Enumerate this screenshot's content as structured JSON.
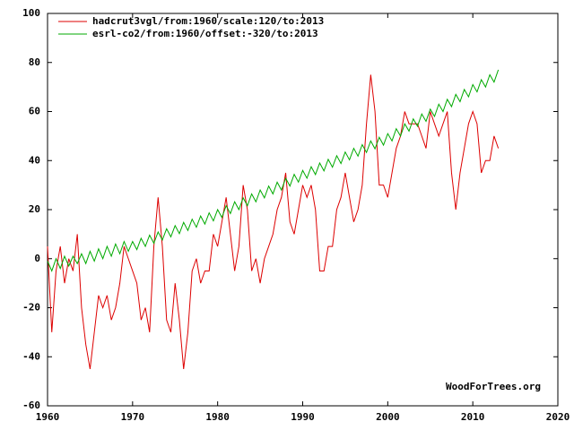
{
  "chart_data": {
    "type": "line",
    "annotation": "WoodForTrees.org",
    "legend": "top-left",
    "grid": false,
    "xlim": [
      1960,
      2020
    ],
    "xticks": [
      1960,
      1970,
      1980,
      1990,
      2000,
      2010,
      2020
    ],
    "ylim": [
      -60,
      100
    ],
    "yticks": [
      -60,
      -40,
      -20,
      0,
      20,
      40,
      60,
      80,
      100
    ],
    "x": [
      1960,
      1960.5,
      1961,
      1961.5,
      1962,
      1962.5,
      1963,
      1963.5,
      1964,
      1964.5,
      1965,
      1965.5,
      1966,
      1966.5,
      1967,
      1967.5,
      1968,
      1968.5,
      1969,
      1969.5,
      1970,
      1970.5,
      1971,
      1971.5,
      1972,
      1972.5,
      1973,
      1973.5,
      1974,
      1974.5,
      1975,
      1975.5,
      1976,
      1976.5,
      1977,
      1977.5,
      1978,
      1978.5,
      1979,
      1979.5,
      1980,
      1980.5,
      1981,
      1981.5,
      1982,
      1982.5,
      1983,
      1983.5,
      1984,
      1984.5,
      1985,
      1985.5,
      1986,
      1986.5,
      1987,
      1987.5,
      1988,
      1988.5,
      1989,
      1989.5,
      1990,
      1990.5,
      1991,
      1991.5,
      1992,
      1992.5,
      1993,
      1993.5,
      1994,
      1994.5,
      1995,
      1995.5,
      1996,
      1996.5,
      1997,
      1997.5,
      1998,
      1998.5,
      1999,
      1999.5,
      2000,
      2000.5,
      2001,
      2001.5,
      2002,
      2002.5,
      2003,
      2003.5,
      2004,
      2004.5,
      2005,
      2005.5,
      2006,
      2006.5,
      2007,
      2007.5,
      2008,
      2008.5,
      2009,
      2009.5,
      2010,
      2010.5,
      2011,
      2011.5,
      2012,
      2012.5,
      2013
    ],
    "series": [
      {
        "name": "hadcrut3vgl/from:1960/scale:120/to:2013",
        "color": "#dd0000",
        "values": [
          5,
          -30,
          -5,
          5,
          -10,
          0,
          -5,
          10,
          -20,
          -35,
          -45,
          -30,
          -15,
          -20,
          -15,
          -25,
          -20,
          -10,
          5,
          0,
          -5,
          -10,
          -25,
          -20,
          -30,
          5,
          25,
          5,
          -25,
          -30,
          -10,
          -25,
          -45,
          -30,
          -5,
          0,
          -10,
          -5,
          -5,
          10,
          5,
          15,
          25,
          10,
          -5,
          5,
          30,
          20,
          -5,
          0,
          -10,
          0,
          5,
          10,
          20,
          25,
          35,
          15,
          10,
          20,
          30,
          25,
          30,
          20,
          -5,
          -5,
          5,
          5,
          20,
          25,
          35,
          25,
          15,
          20,
          30,
          55,
          75,
          60,
          30,
          30,
          25,
          35,
          45,
          50,
          60,
          55,
          55,
          55,
          50,
          45,
          60,
          55,
          50,
          55,
          60,
          35,
          20,
          35,
          45,
          55,
          60,
          55,
          35,
          40,
          40,
          50,
          45
        ]
      },
      {
        "name": "esrl-co2/from:1960/offset:-320/to:2013",
        "color": "#00aa00",
        "values": [
          -1,
          -5,
          0,
          -4,
          1,
          -3,
          1,
          -2,
          2,
          -2,
          3,
          -1,
          4,
          0,
          5,
          1,
          6,
          2,
          7,
          3,
          7,
          3.7,
          8.3,
          5,
          9.6,
          6.3,
          10.9,
          7.6,
          12.2,
          8.9,
          13.5,
          10.2,
          14.8,
          11.5,
          16.1,
          12.8,
          17.4,
          14.1,
          18.7,
          15.4,
          20,
          16.8,
          21.6,
          18.4,
          23.2,
          20,
          24.8,
          21.6,
          26.4,
          23.2,
          28,
          24.8,
          29.6,
          26.4,
          31.2,
          28,
          32.8,
          29.6,
          34.4,
          31.2,
          36,
          32.8,
          37.5,
          34.3,
          39,
          35.8,
          40.5,
          37.3,
          42,
          38.8,
          43.5,
          40.3,
          45,
          41.8,
          46.5,
          43.3,
          48,
          44.8,
          49.5,
          46.3,
          51,
          48,
          53,
          50,
          55,
          52,
          57,
          54,
          59,
          56,
          61,
          58,
          63,
          60,
          65,
          62,
          67,
          64,
          69,
          66,
          71,
          68,
          73,
          70,
          75,
          72,
          77
        ]
      }
    ]
  }
}
